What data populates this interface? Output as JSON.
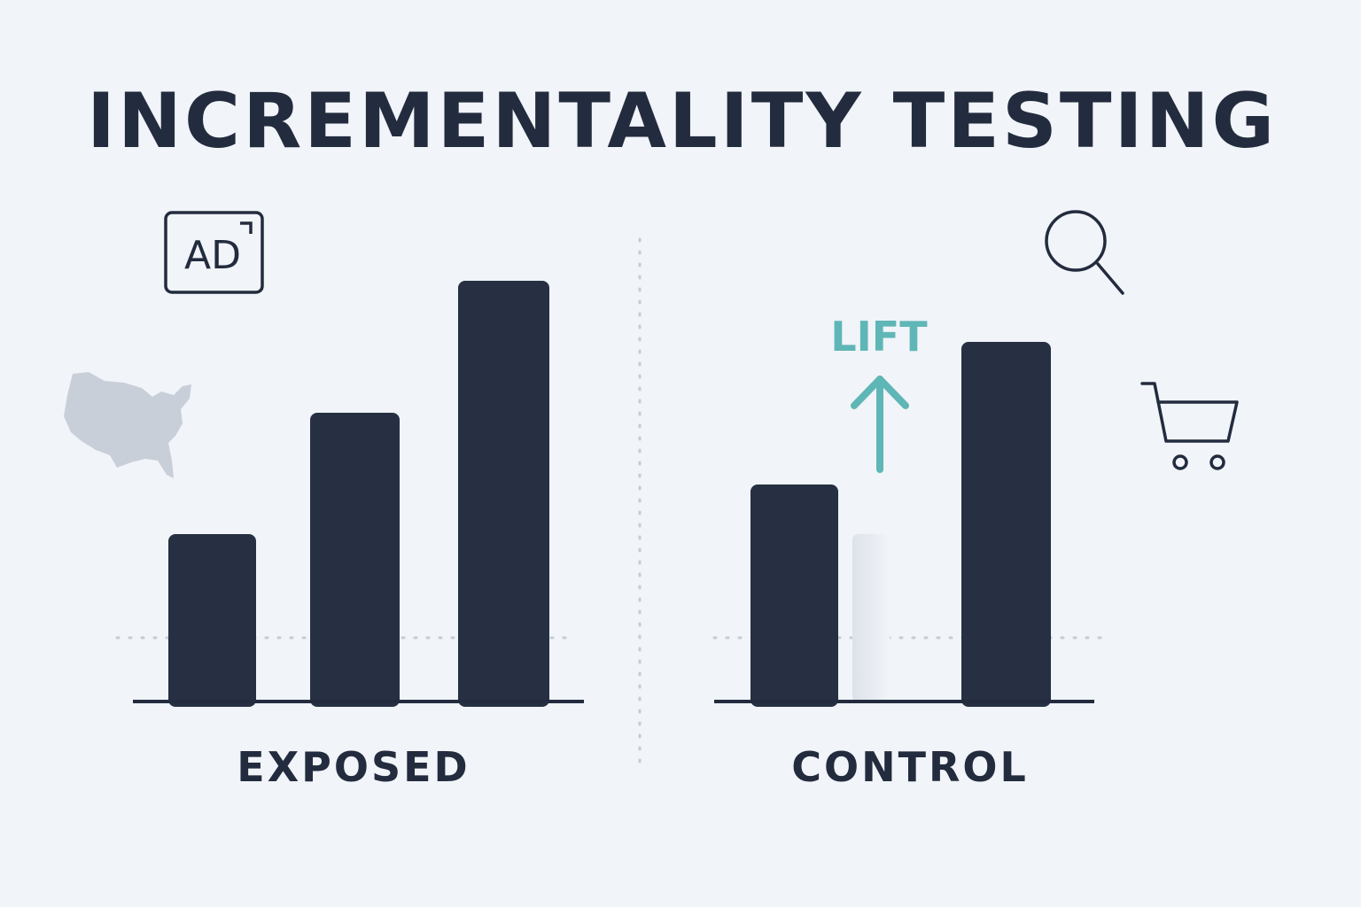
{
  "header": {
    "title": "INCREMENTALITY TESTING"
  },
  "icons": {
    "ad": "AD"
  },
  "annotation": {
    "lift": "LIFT"
  },
  "groups": [
    {
      "label": "EXPOSED"
    },
    {
      "label": "CONTROL"
    }
  ]
}
